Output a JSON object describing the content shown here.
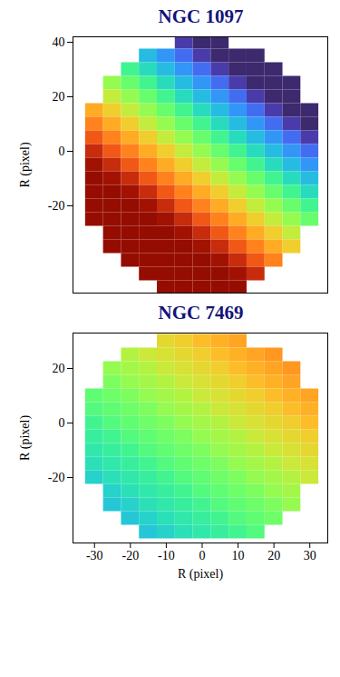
{
  "chart_data": [
    {
      "type": "heatmap",
      "title": "NGC 1097",
      "ylabel": "R (pixel)",
      "tick_labels": "y",
      "xlim": [
        -36,
        35
      ],
      "ylim": [
        -52,
        42
      ],
      "yticks": [
        40,
        20,
        0,
        -20
      ],
      "color": "turbo",
      "zlim": [
        0,
        1
      ],
      "x": [
        -30,
        -25,
        -20,
        -15,
        -10,
        -5,
        0,
        5,
        10,
        15,
        20,
        25,
        30
      ],
      "y": [
        40,
        35,
        30,
        25,
        20,
        15,
        10,
        5,
        0,
        -5,
        -10,
        -15,
        -20,
        -25,
        -30,
        -35,
        -40,
        -45,
        -50
      ],
      "cells": [
        [
          null,
          null,
          null,
          null,
          null,
          0.06,
          0.03,
          0.03,
          null,
          null,
          null,
          null,
          null
        ],
        [
          null,
          null,
          null,
          0.25,
          0.19,
          0.13,
          0.06,
          0.03,
          0.03,
          0.03,
          null,
          null,
          null
        ],
        [
          null,
          null,
          0.38,
          0.31,
          0.25,
          0.19,
          0.13,
          0.06,
          0.03,
          0.03,
          0.03,
          null,
          null
        ],
        [
          null,
          0.5,
          0.44,
          0.38,
          0.31,
          0.25,
          0.19,
          0.13,
          0.06,
          0.03,
          0.03,
          0.03,
          null
        ],
        [
          null,
          0.56,
          0.5,
          0.44,
          0.38,
          0.31,
          0.25,
          0.19,
          0.13,
          0.06,
          0.03,
          0.03,
          null
        ],
        [
          0.69,
          0.63,
          0.56,
          0.5,
          0.44,
          0.38,
          0.31,
          0.25,
          0.19,
          0.13,
          0.06,
          0.03,
          0.03
        ],
        [
          0.75,
          0.69,
          0.63,
          0.56,
          0.5,
          0.44,
          0.38,
          0.31,
          0.25,
          0.19,
          0.13,
          0.06,
          0.03
        ],
        [
          0.81,
          0.75,
          0.69,
          0.63,
          0.56,
          0.5,
          0.44,
          0.38,
          0.31,
          0.25,
          0.19,
          0.13,
          0.06
        ],
        [
          0.88,
          0.81,
          0.75,
          0.69,
          0.63,
          0.56,
          0.5,
          0.44,
          0.38,
          0.31,
          0.25,
          0.19,
          0.13
        ],
        [
          0.94,
          0.88,
          0.81,
          0.75,
          0.69,
          0.63,
          0.56,
          0.5,
          0.44,
          0.38,
          0.31,
          0.25,
          0.19
        ],
        [
          0.97,
          0.94,
          0.88,
          0.81,
          0.75,
          0.69,
          0.63,
          0.56,
          0.5,
          0.44,
          0.38,
          0.31,
          0.25
        ],
        [
          0.97,
          0.97,
          0.94,
          0.88,
          0.81,
          0.75,
          0.69,
          0.63,
          0.56,
          0.5,
          0.44,
          0.38,
          0.31
        ],
        [
          0.97,
          0.97,
          0.97,
          0.94,
          0.88,
          0.81,
          0.75,
          0.69,
          0.63,
          0.56,
          0.5,
          0.44,
          0.38
        ],
        [
          0.97,
          0.97,
          0.97,
          0.97,
          0.94,
          0.88,
          0.81,
          0.75,
          0.69,
          0.63,
          0.56,
          0.5,
          0.44
        ],
        [
          null,
          0.97,
          0.97,
          0.97,
          0.97,
          0.94,
          0.88,
          0.81,
          0.75,
          0.69,
          0.63,
          0.56,
          null
        ],
        [
          null,
          0.97,
          0.97,
          0.97,
          0.97,
          0.97,
          0.94,
          0.88,
          0.81,
          0.75,
          0.69,
          0.63,
          null
        ],
        [
          null,
          null,
          0.97,
          0.97,
          0.97,
          0.97,
          0.97,
          0.94,
          0.88,
          0.81,
          0.75,
          null,
          null
        ],
        [
          null,
          null,
          null,
          0.97,
          0.97,
          0.97,
          0.97,
          0.97,
          0.94,
          0.88,
          null,
          null,
          null
        ],
        [
          null,
          null,
          null,
          null,
          0.97,
          0.97,
          0.97,
          0.97,
          0.97,
          null,
          null,
          null,
          null
        ]
      ]
    },
    {
      "type": "heatmap",
      "title": "NGC 7469",
      "xlabel": "R (pixel)",
      "ylabel": "R (pixel)",
      "xlim": [
        -36,
        35
      ],
      "ylim": [
        -44,
        33
      ],
      "xticks": [
        -30,
        -20,
        -10,
        0,
        10,
        20,
        30
      ],
      "yticks": [
        20,
        0,
        -20
      ],
      "color": "turbo",
      "zlim": [
        0,
        1
      ],
      "x": [
        -30,
        -25,
        -20,
        -15,
        -10,
        -5,
        0,
        5,
        10,
        15,
        20,
        25,
        30
      ],
      "y": [
        30,
        25,
        20,
        15,
        10,
        5,
        0,
        -5,
        -10,
        -15,
        -20,
        -25,
        -30,
        -35,
        -40
      ],
      "cells": [
        [
          null,
          null,
          null,
          null,
          0.61,
          0.63,
          0.66,
          0.68,
          0.7,
          null,
          null,
          null,
          null
        ],
        [
          null,
          null,
          0.54,
          0.57,
          0.59,
          0.61,
          0.63,
          0.66,
          0.68,
          0.7,
          0.72,
          null,
          null
        ],
        [
          null,
          0.5,
          0.52,
          0.54,
          0.57,
          0.59,
          0.61,
          0.63,
          0.66,
          0.68,
          0.7,
          0.72,
          null
        ],
        [
          null,
          0.47,
          0.5,
          0.52,
          0.54,
          0.57,
          0.59,
          0.61,
          0.63,
          0.66,
          0.68,
          0.7,
          null
        ],
        [
          0.43,
          0.45,
          0.47,
          0.5,
          0.52,
          0.54,
          0.57,
          0.59,
          0.61,
          0.63,
          0.66,
          0.68,
          0.7
        ],
        [
          0.41,
          0.43,
          0.45,
          0.47,
          0.5,
          0.52,
          0.54,
          0.57,
          0.59,
          0.61,
          0.63,
          0.66,
          0.68
        ],
        [
          0.38,
          0.41,
          0.43,
          0.45,
          0.47,
          0.5,
          0.52,
          0.54,
          0.57,
          0.59,
          0.61,
          0.63,
          0.66
        ],
        [
          0.36,
          0.38,
          0.41,
          0.43,
          0.45,
          0.47,
          0.5,
          0.52,
          0.54,
          0.57,
          0.59,
          0.61,
          0.63
        ],
        [
          0.34,
          0.36,
          0.38,
          0.41,
          0.43,
          0.45,
          0.47,
          0.5,
          0.52,
          0.54,
          0.57,
          0.59,
          0.61
        ],
        [
          0.32,
          0.34,
          0.36,
          0.38,
          0.41,
          0.43,
          0.45,
          0.47,
          0.5,
          0.52,
          0.54,
          0.57,
          0.59
        ],
        [
          0.29,
          0.32,
          0.34,
          0.36,
          0.38,
          0.41,
          0.43,
          0.45,
          0.47,
          0.5,
          0.52,
          0.54,
          0.57
        ],
        [
          null,
          0.29,
          0.32,
          0.34,
          0.36,
          0.38,
          0.41,
          0.43,
          0.45,
          0.47,
          0.5,
          0.52,
          null
        ],
        [
          null,
          0.27,
          0.29,
          0.32,
          0.34,
          0.36,
          0.38,
          0.41,
          0.43,
          0.45,
          0.47,
          0.5,
          null
        ],
        [
          null,
          null,
          0.27,
          0.29,
          0.32,
          0.34,
          0.36,
          0.38,
          0.41,
          0.43,
          0.45,
          null,
          null
        ],
        [
          null,
          null,
          null,
          0.27,
          0.29,
          0.32,
          0.34,
          0.36,
          0.38,
          0.41,
          null,
          null,
          null
        ]
      ]
    }
  ]
}
